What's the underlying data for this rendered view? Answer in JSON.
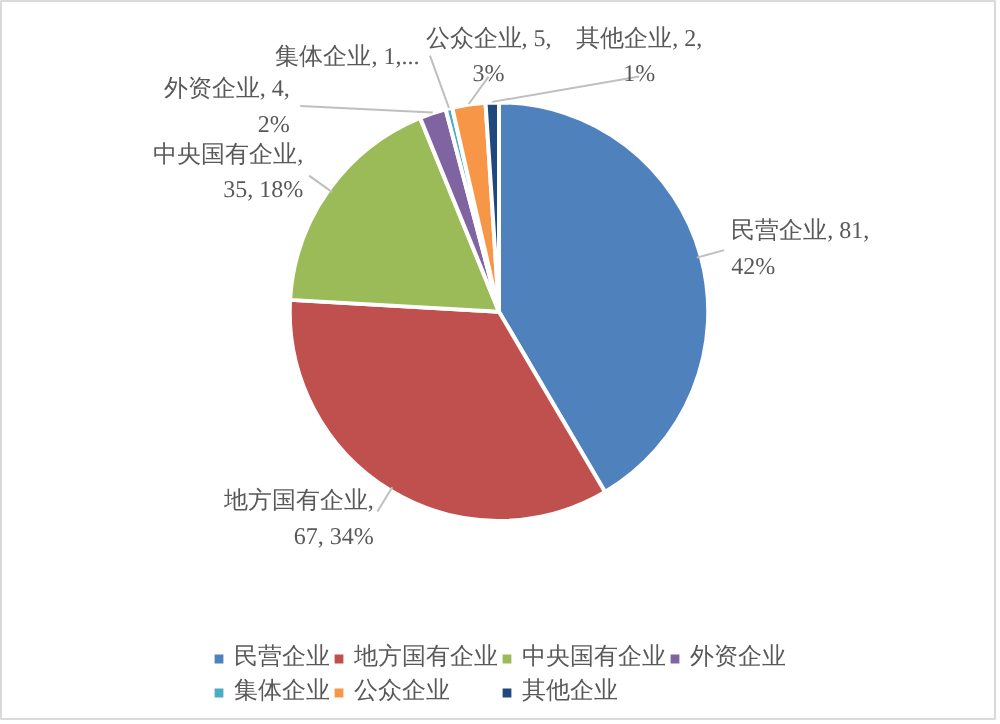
{
  "chart_data": {
    "type": "pie",
    "categories": [
      "民营企业",
      "地方国有企业",
      "中央国有企业",
      "外资企业",
      "集体企业",
      "公众企业",
      "其他企业"
    ],
    "values": [
      81,
      67,
      35,
      4,
      1,
      5,
      2
    ],
    "colors": [
      "#4f81bd",
      "#c0504d",
      "#9bbb59",
      "#8064a2",
      "#4bacc6",
      "#f79646",
      "#1f497d"
    ],
    "value_labels": [
      "民营企业, 81,\n42%",
      "地方国有企业,\n67, 34%",
      "中央国有企业,\n35, 18%",
      "外资企业, 4,\n2%",
      "集体企业, 1,...",
      "公众企业, 5,\n3%",
      "其他企业, 2,\n1%"
    ],
    "legend": "bottom"
  }
}
